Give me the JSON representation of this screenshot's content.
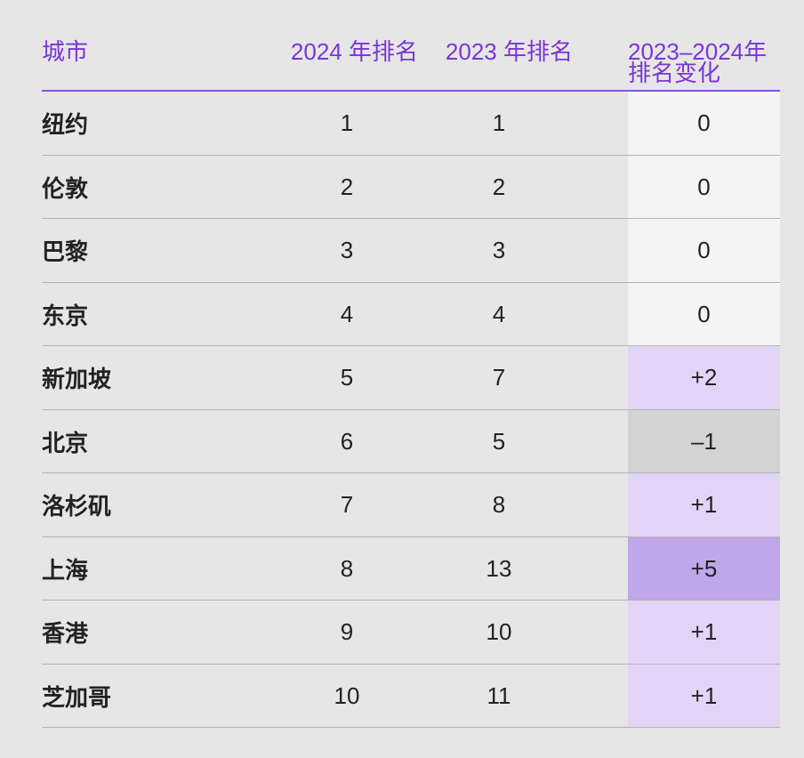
{
  "table": {
    "header": [
      "城市",
      "2024 年排名",
      "2023 年排名",
      "2023–2024年排名变化"
    ],
    "rows": [
      [
        "纽约",
        "1",
        "1",
        "0"
      ],
      [
        "伦敦",
        "2",
        "2",
        "0"
      ],
      [
        "巴黎",
        "3",
        "3",
        "0"
      ],
      [
        "东京",
        "4",
        "4",
        "0"
      ],
      [
        "新加坡",
        "5",
        "7",
        "+2"
      ],
      [
        "北京",
        "6",
        "5",
        "–1"
      ],
      [
        "洛杉矶",
        "7",
        "8",
        "+1"
      ],
      [
        "上海",
        "8",
        "13",
        "+5"
      ],
      [
        "香港",
        "9",
        "10",
        "+1"
      ],
      [
        "芝加哥",
        "10",
        "11",
        "+1"
      ]
    ]
  }
}
